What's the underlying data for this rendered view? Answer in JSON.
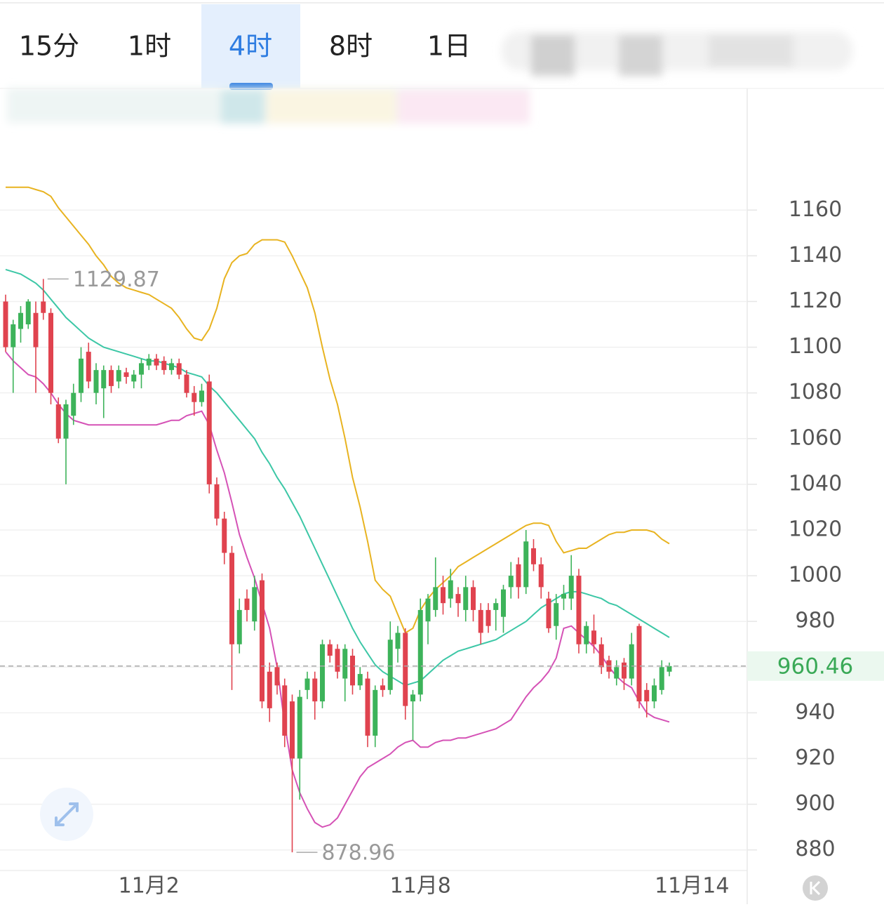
{
  "tabs": [
    "15分",
    "1时",
    "4时",
    "8时",
    "1日"
  ],
  "active_tab": 2,
  "chart_data": {
    "type": "candlestick",
    "categories": [
      null,
      null,
      null,
      null,
      null,
      null,
      null,
      null,
      null,
      null,
      null,
      null,
      null,
      null,
      null,
      null,
      null,
      null,
      null,
      "11月2",
      null,
      null,
      null,
      null,
      null,
      null,
      null,
      null,
      null,
      null,
      null,
      null,
      null,
      null,
      null,
      null,
      null,
      null,
      null,
      null,
      null,
      null,
      null,
      null,
      null,
      null,
      null,
      null,
      null,
      null,
      null,
      null,
      null,
      null,
      null,
      "11月8",
      null,
      null,
      null,
      null,
      null,
      null,
      null,
      null,
      null,
      null,
      null,
      null,
      null,
      null,
      null,
      null,
      null,
      null,
      null,
      null,
      null,
      null,
      null,
      null,
      null,
      null,
      null,
      null,
      null,
      null,
      null,
      null,
      null,
      null,
      null,
      "11月14"
    ],
    "open": [
      1120,
      1100,
      1108,
      1110,
      1115,
      1120,
      1115,
      1075,
      1060,
      1070,
      1080,
      1098,
      1080,
      1082,
      1090,
      1085,
      1089,
      1085,
      1088,
      1092,
      1095,
      1094,
      1090,
      1093,
      1088,
      1080,
      1076,
      1085,
      1040,
      1025,
      1010,
      970,
      990,
      980,
      998,
      958,
      960,
      952,
      945,
      920,
      950,
      955,
      945,
      970,
      968,
      955,
      965,
      952,
      955,
      930,
      952,
      950,
      968,
      975,
      945,
      948,
      980,
      985,
      995,
      990,
      992,
      985,
      995,
      985,
      985,
      985,
      982,
      995,
      1005,
      995,
      1012,
      1005,
      990,
      978,
      990,
      990,
      1000,
      970,
      976,
      970,
      963,
      955,
      962,
      955,
      978,
      950,
      945,
      950,
      958,
      null,
      null,
      null
    ],
    "high": [
      1123,
      1112,
      1118,
      1121,
      1120,
      1129.87,
      1117,
      1078,
      1077,
      1084,
      1100,
      1102,
      1093,
      1092,
      1092,
      1092,
      1091,
      1090,
      1095,
      1097,
      1097,
      1096,
      1095,
      1095,
      1090,
      1083,
      1084,
      1088,
      1043,
      1028,
      1013,
      990,
      994,
      1000,
      1001,
      962,
      962,
      955,
      948,
      950,
      958,
      958,
      972,
      972,
      970,
      970,
      968,
      960,
      958,
      952,
      955,
      980,
      978,
      977,
      950,
      990,
      992,
      1008,
      1000,
      1003,
      995,
      1000,
      998,
      988,
      988,
      990,
      996,
      1006,
      1008,
      1020,
      1016,
      1008,
      993,
      992,
      996,
      1009,
      1003,
      980,
      983,
      973,
      965,
      963,
      964,
      975,
      979,
      953,
      955,
      963,
      962,
      null,
      null,
      null
    ],
    "low": [
      1098,
      1080,
      1102,
      1108,
      1080,
      1112,
      1075,
      1058,
      1040,
      1066,
      1076,
      1082,
      1075,
      1069,
      1080,
      1082,
      1084,
      1082,
      1082,
      1090,
      1090,
      1088,
      1088,
      1086,
      1078,
      1070,
      1074,
      1036,
      1022,
      1005,
      950,
      966,
      980,
      976,
      942,
      936,
      948,
      925,
      878.96,
      902,
      946,
      937,
      942,
      962,
      955,
      945,
      948,
      950,
      925,
      925,
      947,
      948,
      962,
      937,
      928,
      945,
      970,
      982,
      983,
      986,
      982,
      980,
      980,
      970,
      975,
      976,
      975,
      990,
      990,
      992,
      1002,
      990,
      975,
      972,
      985,
      985,
      966,
      966,
      966,
      957,
      955,
      952,
      950,
      952,
      942,
      938,
      942,
      948,
      956,
      null,
      null,
      null
    ],
    "close": [
      1100,
      1110,
      1115,
      1120,
      1100,
      1115,
      1080,
      1060,
      1075,
      1080,
      1095,
      1085,
      1090,
      1090,
      1083,
      1090,
      1087,
      1088,
      1093,
      1095,
      1092,
      1090,
      1093,
      1088,
      1080,
      1076,
      1081,
      1040,
      1025,
      1010,
      970,
      985,
      985,
      995,
      945,
      942,
      952,
      930,
      920,
      947,
      955,
      945,
      970,
      965,
      958,
      968,
      952,
      957,
      930,
      950,
      950,
      972,
      975,
      943,
      948,
      985,
      990,
      995,
      988,
      998,
      988,
      995,
      985,
      975,
      978,
      988,
      994,
      1000,
      995,
      1015,
      1005,
      995,
      977,
      988,
      992,
      1000,
      970,
      978,
      970,
      960,
      958,
      960,
      955,
      970,
      945,
      945,
      952,
      960,
      960.46,
      null,
      null,
      null
    ],
    "up_color": "#3db35a",
    "down_color": "#e0434f",
    "series": [
      {
        "color": "#e8b320",
        "values": [
          1170,
          1170,
          1170,
          1170,
          1169,
          1168,
          1166,
          1161,
          1157,
          1153,
          1149,
          1145,
          1140,
          1136,
          1131,
          1128,
          1126,
          1125,
          1124,
          1123,
          1121,
          1119,
          1117,
          1113,
          1108,
          1104,
          1103,
          1108,
          1117,
          1130,
          1137,
          1140,
          1141,
          1145,
          1147,
          1147,
          1147,
          1146,
          1140,
          1133,
          1126,
          1115,
          1100,
          1086,
          1075,
          1060,
          1043,
          1030,
          1015,
          998,
          994,
          991,
          983,
          975,
          977,
          985,
          990,
          994,
          997,
          1000,
          1004,
          1006,
          1008,
          1010,
          1012,
          1014,
          1016,
          1018,
          1020,
          1022,
          1023,
          1023,
          1022,
          1015,
          1010,
          1011,
          1012,
          1012,
          1014,
          1016,
          1018,
          1019,
          1019,
          1020,
          1020,
          1020,
          1019,
          1016,
          1014,
          null,
          null,
          null
        ]
      },
      {
        "color": "#3cc7a6",
        "values": [
          1134,
          1133,
          1132,
          1130,
          1128,
          1125,
          1121,
          1117,
          1113,
          1110,
          1107,
          1104,
          1102,
          1100,
          1099,
          1098,
          1097,
          1096,
          1095,
          1094,
          1094,
          1093,
          1092,
          1091,
          1089,
          1088,
          1087,
          1083,
          1080,
          1076,
          1072,
          1068,
          1064,
          1060,
          1054,
          1049,
          1043,
          1038,
          1032,
          1026,
          1019,
          1012,
          1005,
          998,
          991,
          984,
          977,
          971,
          966,
          961,
          958,
          956,
          954,
          952,
          953,
          954,
          957,
          960,
          963,
          965,
          967,
          968,
          969,
          970,
          971,
          972,
          974,
          976,
          978,
          980,
          983,
          986,
          988,
          990,
          992,
          993,
          993,
          992,
          991,
          990,
          988,
          987,
          985,
          983,
          981,
          979,
          977,
          975,
          973,
          null,
          null,
          null
        ]
      },
      {
        "color": "#d552b6",
        "values": [
          1098,
          1094,
          1091,
          1088,
          1087,
          1084,
          1080,
          1075,
          1071,
          1068,
          1067,
          1066,
          1066,
          1066,
          1066,
          1066,
          1066,
          1066,
          1066,
          1066,
          1066,
          1067,
          1068,
          1068,
          1070,
          1071,
          1072,
          1066,
          1055,
          1045,
          1032,
          1018,
          1008,
          999,
          988,
          977,
          960,
          935,
          915,
          905,
          898,
          892,
          890,
          891,
          894,
          900,
          906,
          912,
          916,
          918,
          920,
          922,
          925,
          927,
          928,
          925,
          925,
          927,
          928,
          928,
          929,
          929,
          930,
          931,
          932,
          933,
          935,
          937,
          942,
          947,
          951,
          954,
          958,
          964,
          977,
          978,
          975,
          972,
          969,
          965,
          960,
          956,
          953,
          951,
          945,
          940,
          938,
          937,
          936,
          null,
          null,
          null
        ]
      }
    ],
    "ylim": [
      871,
      1212
    ],
    "yticks": [
      880,
      900,
      920,
      940,
      960,
      980,
      1000,
      1020,
      1040,
      1060,
      1080,
      1100,
      1120,
      1140,
      1160
    ],
    "grid": true,
    "last_price": 960.46,
    "max_marker": 1129.87,
    "min_marker": 878.96
  }
}
